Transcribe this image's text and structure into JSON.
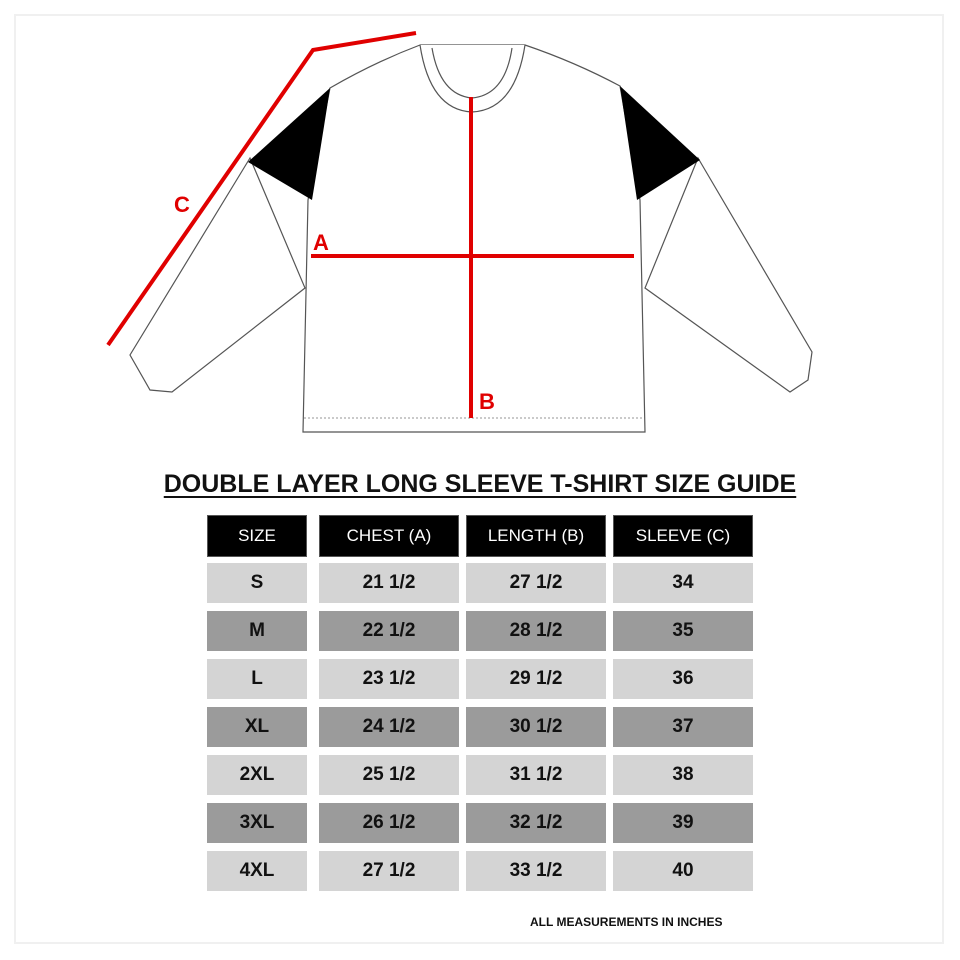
{
  "diagram": {
    "labels": {
      "chest": "A",
      "length": "B",
      "sleeve": "C"
    },
    "measure_color": "#e00000"
  },
  "title": "DOUBLE LAYER LONG SLEEVE T-SHIRT SIZE GUIDE",
  "table": {
    "headers": [
      "SIZE",
      "CHEST (A)",
      "LENGTH (B)",
      "SLEEVE (C)"
    ],
    "rows": [
      [
        "S",
        "21 1/2",
        "27 1/2",
        "34"
      ],
      [
        "M",
        "22 1/2",
        "28 1/2",
        "35"
      ],
      [
        "L",
        "23 1/2",
        "29 1/2",
        "36"
      ],
      [
        "XL",
        "24 1/2",
        "30 1/2",
        "37"
      ],
      [
        "2XL",
        "25 1/2",
        "31 1/2",
        "38"
      ],
      [
        "3XL",
        "26 1/2",
        "32 1/2",
        "39"
      ],
      [
        "4XL",
        "27 1/2",
        "33 1/2",
        "40"
      ]
    ],
    "row_colors": [
      "#d4d4d4",
      "#9b9b9b"
    ]
  },
  "footnote": "ALL MEASUREMENTS IN INCHES"
}
